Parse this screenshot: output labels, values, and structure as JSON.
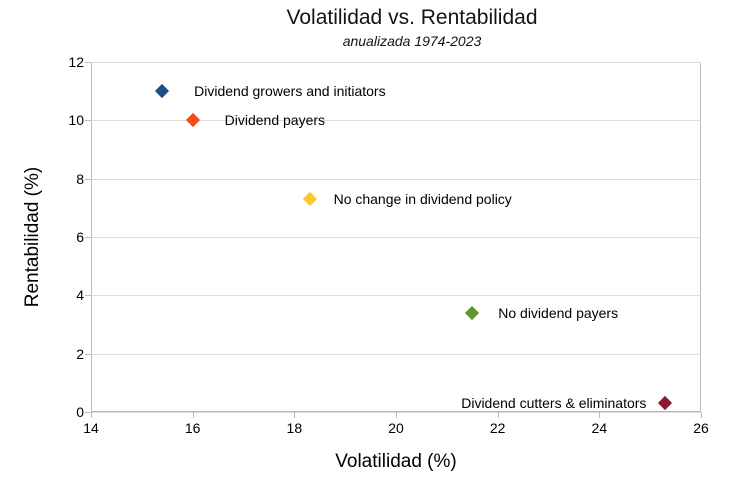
{
  "chart_data": {
    "type": "scatter",
    "title": "Volatilidad vs. Rentabilidad",
    "subtitle": "anualizada 1974-2023",
    "xlabel": "Volatilidad (%)",
    "ylabel": "Rentabilidad (%)",
    "xlim": [
      14,
      26
    ],
    "ylim": [
      0,
      12
    ],
    "x_ticks": [
      14,
      16,
      18,
      20,
      22,
      24,
      26
    ],
    "y_ticks": [
      0,
      2,
      4,
      6,
      8,
      10,
      12
    ],
    "grid": "horizontal-only",
    "legend": "none",
    "marker_shape": "diamond",
    "points": [
      {
        "label": "Dividend growers and initiators",
        "x": 15.4,
        "y": 11.0,
        "color": "#1D4E84",
        "label_side": "right",
        "label_dx": 32
      },
      {
        "label": "Dividend payers",
        "x": 16.0,
        "y": 10.0,
        "color": "#F44D1A",
        "label_side": "right",
        "label_dx": 32
      },
      {
        "label": "No change in dividend policy",
        "x": 18.3,
        "y": 7.3,
        "color": "#FCC72D",
        "label_side": "right",
        "label_dx": 24
      },
      {
        "label": "No dividend payers",
        "x": 21.5,
        "y": 3.4,
        "color": "#5C9B2B",
        "label_side": "right",
        "label_dx": 26
      },
      {
        "label": "Dividend cutters & eliminators",
        "x": 25.3,
        "y": 0.3,
        "color": "#8B1B2D",
        "label_side": "left",
        "label_dx": -19
      }
    ]
  }
}
